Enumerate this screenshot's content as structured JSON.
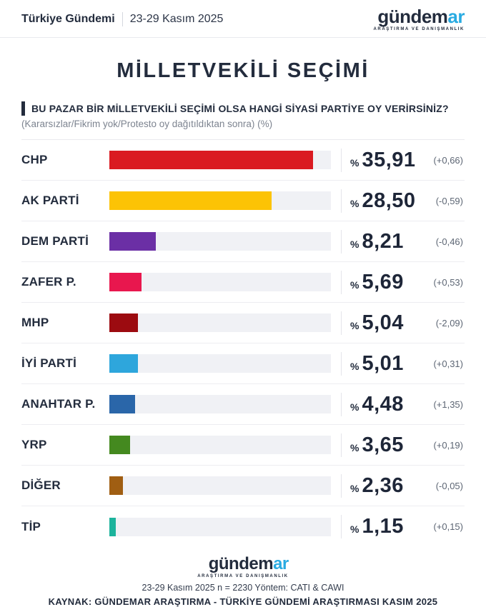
{
  "header": {
    "section_label": "Türkiye Gündemi",
    "date_range": "23-29 Kasım 2025"
  },
  "brand": {
    "name_primary": "gündem",
    "name_accent": "ar",
    "tagline": "ARAŞTIRMA VE DANIŞMANLIK",
    "primary_color": "#232c3d",
    "accent_color": "#29abe2"
  },
  "title": "MİLLETVEKİLİ SEÇİMİ",
  "question": {
    "text": "BU PAZAR BİR MİLLETVEKİLİ SEÇİMİ OLSA HANGİ SİYASİ PARTİYE OY VERİRSİNİZ?",
    "note": "(Kararsızlar/Fikrim yok/Protesto oy dağıtıldıktan sonra) (%)"
  },
  "chart_data": {
    "type": "bar",
    "orientation": "horizontal",
    "unit": "%",
    "percent_sign": "%",
    "axis_max": 39,
    "grid": false,
    "legend": false,
    "categories": [
      "CHP",
      "AK PARTİ",
      "DEM PARTİ",
      "ZAFER P.",
      "MHP",
      "İYİ PARTİ",
      "ANAHTAR P.",
      "YRP",
      "DİĞER",
      "TİP"
    ],
    "values": [
      35.91,
      28.5,
      8.21,
      5.69,
      5.04,
      5.01,
      4.48,
      3.65,
      2.36,
      1.15
    ],
    "changes": [
      0.66,
      -0.59,
      -0.46,
      0.53,
      -2.09,
      0.31,
      1.35,
      0.19,
      -0.05,
      0.15
    ],
    "track_color": "#f0f1f5",
    "parties": [
      {
        "name": "CHP",
        "value": 35.91,
        "value_label": "35,91",
        "change_label": "(+0,66)",
        "color": "#da1a21"
      },
      {
        "name": "AK PARTİ",
        "value": 28.5,
        "value_label": "28,50",
        "change_label": "(-0,59)",
        "color": "#fcc305"
      },
      {
        "name": "DEM PARTİ",
        "value": 8.21,
        "value_label": "8,21",
        "change_label": "(-0,46)",
        "color": "#6b2fa5"
      },
      {
        "name": "ZAFER P.",
        "value": 5.69,
        "value_label": "5,69",
        "change_label": "(+0,53)",
        "color": "#e8174e"
      },
      {
        "name": "MHP",
        "value": 5.04,
        "value_label": "5,04",
        "change_label": "(-2,09)",
        "color": "#9c0b10"
      },
      {
        "name": "İYİ PARTİ",
        "value": 5.01,
        "value_label": "5,01",
        "change_label": "(+0,31)",
        "color": "#2ea6dc"
      },
      {
        "name": "ANAHTAR P.",
        "value": 4.48,
        "value_label": "4,48",
        "change_label": "(+1,35)",
        "color": "#2a66a9"
      },
      {
        "name": "YRP",
        "value": 3.65,
        "value_label": "3,65",
        "change_label": "(+0,19)",
        "color": "#44891f"
      },
      {
        "name": "DİĞER",
        "value": 2.36,
        "value_label": "2,36",
        "change_label": "(-0,05)",
        "color": "#a05e12"
      },
      {
        "name": "TİP",
        "value": 1.15,
        "value_label": "1,15",
        "change_label": "(+0,15)",
        "color": "#1cb39c"
      }
    ]
  },
  "footer": {
    "methodology": "23-29 Kasım 2025 n = 2230 Yöntem: CATI & CAWI",
    "source": "KAYNAK: GÜNDEMAR ARAŞTIRMA - TÜRKİYE GÜNDEMİ ARAŞTIRMASI KASIM 2025"
  }
}
